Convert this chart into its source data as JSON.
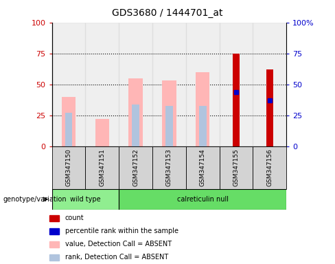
{
  "title": "GDS3680 / 1444701_at",
  "samples": [
    "GSM347150",
    "GSM347151",
    "GSM347152",
    "GSM347153",
    "GSM347154",
    "GSM347155",
    "GSM347156"
  ],
  "pink_bar_heights": [
    40,
    22,
    55,
    53,
    60,
    0,
    0
  ],
  "lightblue_bar_heights": [
    27,
    0,
    34,
    33,
    33,
    0,
    0
  ],
  "red_bar_heights": [
    0,
    0,
    0,
    0,
    0,
    75,
    62
  ],
  "blue_dot_heights": [
    0,
    0,
    0,
    0,
    0,
    44,
    37
  ],
  "ylim": [
    0,
    100
  ],
  "yticks": [
    0,
    25,
    50,
    75,
    100
  ],
  "left_ycolor": "#cc0000",
  "right_ycolor": "#0000cc",
  "right_ytick_labels": [
    "0",
    "25",
    "50",
    "75",
    "100%"
  ],
  "pink_color": "#ffb6b6",
  "lightblue_color": "#b0c4de",
  "red_color": "#cc0000",
  "blue_color": "#0000cc",
  "gray_col_color": "#d3d3d3",
  "wt_color": "#90ee90",
  "cn_color": "#66dd66",
  "legend_labels": [
    "count",
    "percentile rank within the sample",
    "value, Detection Call = ABSENT",
    "rank, Detection Call = ABSENT"
  ],
  "legend_colors": [
    "#cc0000",
    "#0000cc",
    "#ffb6b6",
    "#b0c4de"
  ]
}
